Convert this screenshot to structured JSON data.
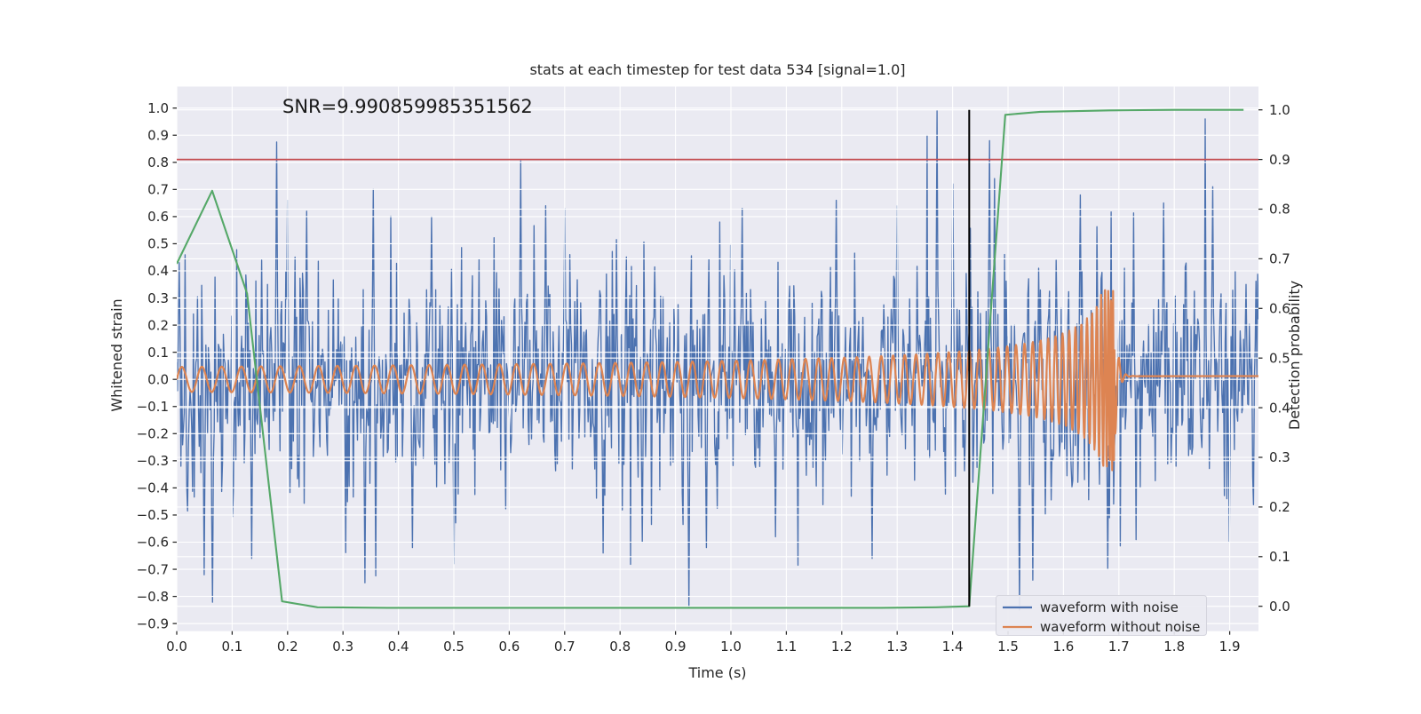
{
  "figure": {
    "background": "#ffffff",
    "axes_background": "#EAEAF2",
    "grid_color": "#ffffff",
    "text_color": "#262626"
  },
  "chart_data": {
    "type": "line",
    "title": "stats at each timestep for test data 534 [signal=1.0]",
    "annotation": "SNR=9.990859985351562",
    "xlabel": "Time (s)",
    "ylabel_left": "Whitened strain",
    "ylabel_right": "Detection probability",
    "xlim": [
      0,
      1.952
    ],
    "ylim_left": [
      -0.928,
      1.079
    ],
    "ylim_right": [
      -0.05,
      1.05
    ],
    "grid": true,
    "x_tick_values": [
      0.0,
      0.1,
      0.2,
      0.3,
      0.4,
      0.5,
      0.6,
      0.7,
      0.8,
      0.9,
      1.0,
      1.1,
      1.2,
      1.3,
      1.4,
      1.5,
      1.6,
      1.7,
      1.8,
      1.9
    ],
    "x_tick_labels": [
      "0.0",
      "0.1",
      "0.2",
      "0.3",
      "0.4",
      "0.5",
      "0.6",
      "0.7",
      "0.8",
      "0.9",
      "1.0",
      "1.1",
      "1.2",
      "1.3",
      "1.4",
      "1.5",
      "1.6",
      "1.7",
      "1.8",
      "1.9"
    ],
    "left_tick_values": [
      1.0,
      0.9,
      0.8,
      0.7,
      0.6,
      0.5,
      0.4,
      0.3,
      0.2,
      0.1,
      0.0,
      -0.1,
      -0.2,
      -0.3,
      -0.4,
      -0.5,
      -0.6,
      -0.7,
      -0.8,
      -0.9
    ],
    "left_tick_labels": [
      "1.0",
      "0.9",
      "0.8",
      "0.7",
      "0.6",
      "0.5",
      "0.4",
      "0.3",
      "0.2",
      "0.1",
      "0.0",
      "−0.1",
      "−0.2",
      "−0.3",
      "−0.4",
      "−0.5",
      "−0.6",
      "−0.7",
      "−0.8",
      "−0.9"
    ],
    "right_tick_values": [
      0.0,
      0.1,
      0.2,
      0.3,
      0.4,
      0.5,
      0.6,
      0.7,
      0.8,
      0.9,
      1.0
    ],
    "right_tick_labels": [
      "0.0",
      "0.1",
      "0.2",
      "0.3",
      "0.4",
      "0.5",
      "0.6",
      "0.7",
      "0.8",
      "0.9",
      "1.0"
    ],
    "legend": {
      "position": "lower right",
      "entries": [
        {
          "label": "waveform with noise",
          "color": "#4C72B0"
        },
        {
          "label": "waveform without noise",
          "color": "#DD8452"
        }
      ]
    },
    "series": [
      {
        "name": "waveform with noise",
        "axis": "left",
        "color": "#4C72B0",
        "type": "noise_plus_signal",
        "generator": {
          "kind": "seeded-gaussian-mixture",
          "seed": 534,
          "n_samples": 1300,
          "sigma_core": 0.185,
          "sigma_tail": 0.38,
          "tail_fraction": 0.1,
          "clip": [
            -0.925,
            1.045
          ],
          "includes_signal": true
        },
        "landmark_spikes": [
          [
            0.005,
            0.43
          ],
          [
            0.05,
            -0.72
          ],
          [
            0.135,
            -0.66
          ],
          [
            0.181,
            0.875
          ],
          [
            0.2,
            0.66
          ],
          [
            0.235,
            0.62
          ],
          [
            0.34,
            -0.75
          ],
          [
            0.355,
            0.7
          ],
          [
            0.425,
            -0.62
          ],
          [
            0.46,
            0.6
          ],
          [
            0.5,
            -0.68
          ],
          [
            0.62,
            0.805
          ],
          [
            0.665,
            0.64
          ],
          [
            0.7,
            0.63
          ],
          [
            0.77,
            -0.64
          ],
          [
            0.84,
            -0.6
          ],
          [
            0.924,
            -0.84
          ],
          [
            0.955,
            -0.62
          ],
          [
            1.02,
            0.63
          ],
          [
            1.08,
            -0.58
          ],
          [
            1.19,
            0.66
          ],
          [
            1.255,
            -0.66
          ],
          [
            1.3,
            0.64
          ],
          [
            1.372,
            0.99
          ],
          [
            1.4,
            0.72
          ],
          [
            1.466,
            0.88
          ],
          [
            1.476,
            0.74
          ],
          [
            1.52,
            -0.85
          ],
          [
            1.545,
            -0.74
          ],
          [
            1.63,
            0.68
          ],
          [
            1.68,
            -0.7
          ],
          [
            1.78,
            0.65
          ],
          [
            1.87,
            0.71
          ],
          [
            1.9,
            -0.6
          ],
          [
            1.93,
            0.35
          ]
        ]
      },
      {
        "name": "waveform without noise",
        "axis": "left",
        "color": "#DD8452",
        "type": "chirp",
        "params": {
          "f0_hz": 27.5,
          "coalescence_time": 1.692,
          "freq_exponent": -0.375,
          "amp0": 0.046,
          "amp_exponent": -0.45,
          "amp_cap": 0.335,
          "ringdown_tau": 0.0055,
          "ringdown_freq_hz": 80,
          "tail_offset": 0.012
        }
      },
      {
        "name": "detection probability",
        "axis": "right",
        "color": "#55A868",
        "type": "polyline",
        "points": [
          [
            0.0,
            0.69
          ],
          [
            0.064,
            0.837
          ],
          [
            0.127,
            0.63
          ],
          [
            0.19,
            0.01
          ],
          [
            0.254,
            -0.002
          ],
          [
            0.381,
            -0.003
          ],
          [
            0.508,
            -0.003
          ],
          [
            0.635,
            -0.003
          ],
          [
            0.762,
            -0.003
          ],
          [
            0.889,
            -0.003
          ],
          [
            1.016,
            -0.003
          ],
          [
            1.143,
            -0.003
          ],
          [
            1.27,
            -0.003
          ],
          [
            1.37,
            -0.002
          ],
          [
            1.43,
            0.0
          ],
          [
            1.495,
            0.99
          ],
          [
            1.558,
            0.996
          ],
          [
            1.683,
            0.999
          ],
          [
            1.8,
            1.0
          ],
          [
            1.925,
            1.0
          ]
        ]
      },
      {
        "name": "detection threshold",
        "axis": "right",
        "color": "#C44E52",
        "type": "hline",
        "y": 0.9
      },
      {
        "name": "event time marker",
        "axis": "right",
        "color": "#000000",
        "type": "vline",
        "x": 1.43,
        "span": [
          0.0,
          1.0
        ]
      }
    ]
  }
}
